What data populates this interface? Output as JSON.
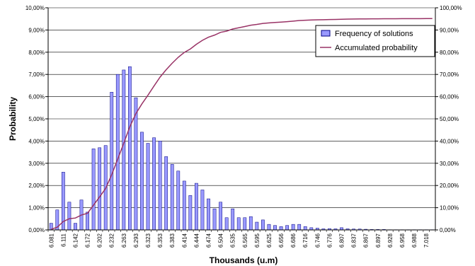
{
  "chart_data": {
    "type": "bar",
    "xlabel": "Thousands (u.m)",
    "ylabel": "Probability",
    "ylim": [
      0,
      10
    ],
    "y2lim": [
      0,
      100
    ],
    "y_ticks": [
      "0,00%",
      "1,00%",
      "2,00%",
      "3,00%",
      "4,00%",
      "5,00%",
      "6,00%",
      "7,00%",
      "8,00%",
      "9,00%",
      "10,00%"
    ],
    "y2_ticks": [
      "0,00%",
      "10,00%",
      "20,00%",
      "30,00%",
      "40,00%",
      "50,00%",
      "60,00%",
      "70,00%",
      "80,00%",
      "90,00%",
      "100,00%"
    ],
    "x_tick_labels": [
      "6.081",
      "6.111",
      "6.142",
      "6.172",
      "6.202",
      "6.232",
      "6.263",
      "6.293",
      "6.323",
      "6.353",
      "6.383",
      "6.414",
      "6.444",
      "6.474",
      "6.504",
      "6.535",
      "6.565",
      "6.595",
      "6.625",
      "6.656",
      "6.686",
      "6.716",
      "6.746",
      "6.776",
      "6.807",
      "6.837",
      "6.867",
      "6.897",
      "6.928",
      "6.958",
      "6.988",
      "7.018"
    ],
    "grid": true,
    "legend_position": "top-right",
    "colors": {
      "bar_fill": "#9999ff",
      "bar_stroke": "#000080",
      "line": "#993366"
    },
    "series": [
      {
        "name": "Frequency of solutions",
        "type": "bar",
        "axis": "left",
        "values": [
          0.3,
          0.9,
          2.6,
          1.25,
          0.3,
          1.35,
          0.8,
          3.65,
          3.7,
          3.8,
          6.2,
          7.0,
          7.2,
          7.35,
          5.95,
          4.4,
          3.9,
          4.15,
          4.0,
          3.3,
          2.95,
          2.65,
          2.2,
          1.55,
          2.1,
          1.8,
          1.4,
          0.95,
          1.25,
          0.55,
          0.95,
          0.55,
          0.55,
          0.6,
          0.35,
          0.45,
          0.25,
          0.2,
          0.15,
          0.2,
          0.25,
          0.25,
          0.15,
          0.1,
          0.08,
          0.05,
          0.06,
          0.05,
          0.1,
          0.05,
          0.04,
          0.04,
          0.03,
          0.02,
          0.02,
          0.02,
          0.01,
          0.01,
          0.01,
          0.01,
          0.01,
          0.01,
          0.01,
          0.01
        ]
      },
      {
        "name": "Accumulated probability",
        "type": "line",
        "axis": "right",
        "values": [
          0.3,
          1.2,
          3.8,
          5.05,
          5.35,
          6.7,
          7.5,
          11.15,
          14.85,
          18.65,
          24.85,
          31.85,
          39.05,
          46.4,
          52.35,
          56.75,
          60.65,
          64.8,
          68.8,
          72.1,
          75.05,
          77.7,
          79.9,
          81.45,
          83.55,
          85.35,
          86.75,
          87.7,
          88.95,
          89.5,
          90.45,
          91.0,
          91.55,
          92.15,
          92.5,
          92.95,
          93.2,
          93.4,
          93.55,
          93.75,
          94.0,
          94.25,
          94.4,
          94.5,
          94.58,
          94.63,
          94.69,
          94.74,
          94.84,
          94.89,
          94.93,
          94.97,
          95.0,
          95.02,
          95.04,
          95.06,
          95.07,
          95.08,
          95.09,
          95.1,
          95.11,
          95.12,
          95.13,
          95.14
        ]
      }
    ]
  }
}
